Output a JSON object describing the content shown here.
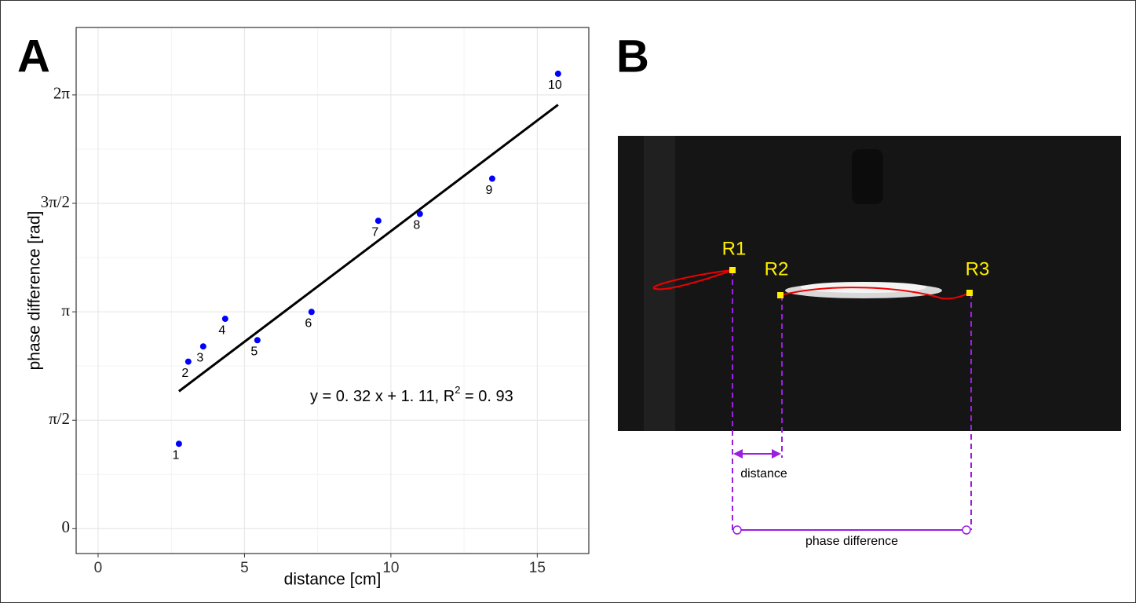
{
  "chart_data": {
    "type": "scatter",
    "panel_label": "A",
    "x_label": "distance [cm]",
    "y_label": "phase difference [rad]",
    "x": [
      2.76,
      3.08,
      3.59,
      4.34,
      5.44,
      7.29,
      9.57,
      10.99,
      13.46,
      15.71
    ],
    "values": [
      1.23,
      2.42,
      2.64,
      3.04,
      2.73,
      3.14,
      4.46,
      4.56,
      5.07,
      6.59
    ],
    "point_labels": [
      "1",
      "2",
      "3",
      "4",
      "5",
      "6",
      "7",
      "8",
      "9",
      "10"
    ],
    "color": "#0000ff",
    "fit_line": {
      "x": [
        2.76,
        15.71
      ],
      "values": [
        1.99,
        6.14
      ],
      "color": "#000000"
    },
    "annotation": {
      "text": "y = 0. 32 x + 1. 11, R",
      "sup": "2",
      "tail": " = 0. 93"
    },
    "xlim": [
      -0.75,
      16.76
    ],
    "xticks": [
      0,
      5,
      10,
      15
    ],
    "ylim": [
      -0.36,
      7.26
    ],
    "yticks": [
      0,
      {
        "value": 1.5708,
        "label": "π/2"
      },
      {
        "value": 3.1416,
        "label": "π"
      },
      {
        "value": 4.7124,
        "label": "3π/2"
      },
      {
        "value": 6.2832,
        "label": "2π"
      }
    ],
    "grid": true,
    "minor_grid": true
  },
  "panel_b": {
    "label": "B",
    "markers": [
      "R1",
      "R2",
      "R3"
    ],
    "distance_label": "distance",
    "phase_label": "phase difference"
  }
}
